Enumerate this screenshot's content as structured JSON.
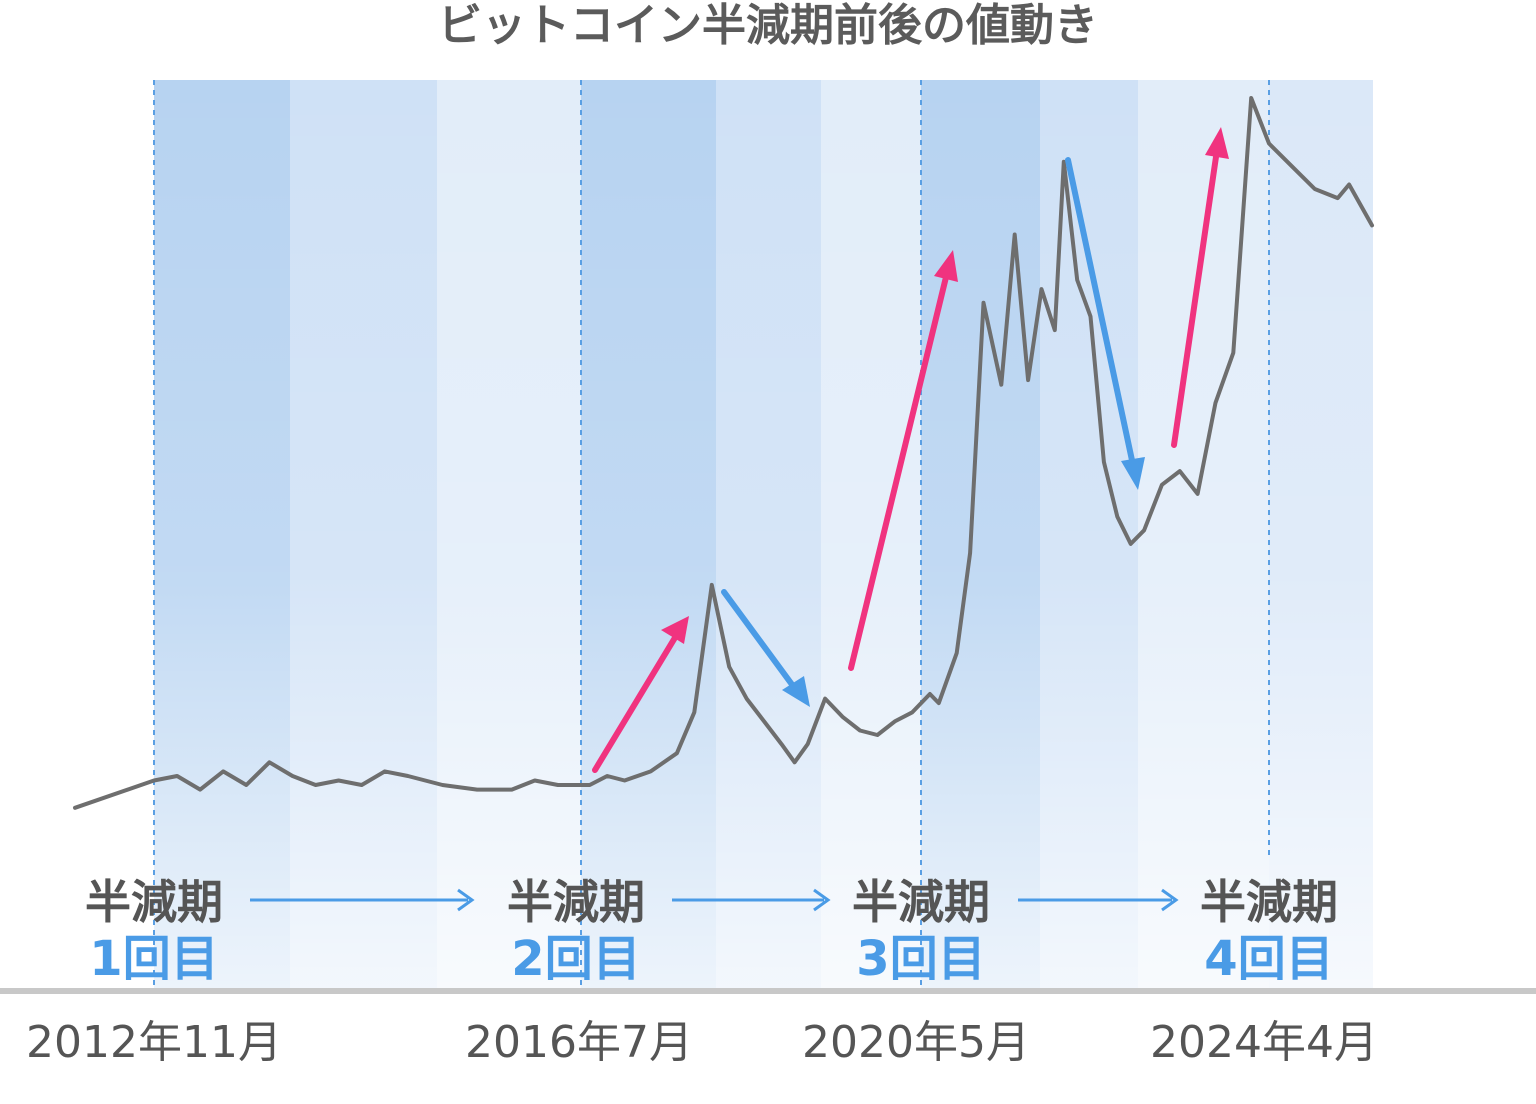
{
  "chart_data": {
    "type": "line",
    "title": "ビットコイン半減期前後の値動き",
    "xlabel": "",
    "ylabel": "",
    "grid": false,
    "x_tick_labels": [
      "2012年11月",
      "2016年7月",
      "2020年5月",
      "2024年4月"
    ],
    "halvings": [
      {
        "word": "半減期",
        "count": "1回目",
        "date": "2012年11月"
      },
      {
        "word": "半減期",
        "count": "2回目",
        "date": "2016年7月"
      },
      {
        "word": "半減期",
        "count": "3回目",
        "date": "2020年5月"
      },
      {
        "word": "半減期",
        "count": "4回目",
        "date": "2024年4月"
      }
    ],
    "series": [
      {
        "color": "#6e6e6e",
        "points": [
          [
            2011.8,
            4
          ],
          [
            2012.8,
            10
          ],
          [
            2013.0,
            11
          ],
          [
            2013.2,
            8
          ],
          [
            2013.4,
            12
          ],
          [
            2013.6,
            9
          ],
          [
            2013.8,
            14
          ],
          [
            2014.0,
            11
          ],
          [
            2014.2,
            9
          ],
          [
            2014.4,
            10
          ],
          [
            2014.6,
            9
          ],
          [
            2014.8,
            12
          ],
          [
            2015.0,
            11
          ],
          [
            2015.3,
            9
          ],
          [
            2015.6,
            8
          ],
          [
            2015.9,
            8
          ],
          [
            2016.1,
            10
          ],
          [
            2016.3,
            9
          ],
          [
            2016.6,
            9
          ],
          [
            2016.8,
            11
          ],
          [
            2017.0,
            10
          ],
          [
            2017.3,
            12
          ],
          [
            2017.6,
            16
          ],
          [
            2017.8,
            25
          ],
          [
            2018.0,
            53
          ],
          [
            2018.2,
            35
          ],
          [
            2018.4,
            28
          ],
          [
            2018.6,
            23
          ],
          [
            2018.8,
            18
          ],
          [
            2018.95,
            14
          ],
          [
            2019.1,
            18
          ],
          [
            2019.3,
            28
          ],
          [
            2019.5,
            24
          ],
          [
            2019.7,
            21
          ],
          [
            2019.9,
            20
          ],
          [
            2020.1,
            23
          ],
          [
            2020.3,
            25
          ],
          [
            2020.5,
            29
          ],
          [
            2020.6,
            27
          ],
          [
            2020.8,
            38
          ],
          [
            2020.95,
            60
          ],
          [
            2021.1,
            115
          ],
          [
            2021.3,
            97
          ],
          [
            2021.45,
            130
          ],
          [
            2021.6,
            98
          ],
          [
            2021.75,
            118
          ],
          [
            2021.9,
            109
          ],
          [
            2022.0,
            146
          ],
          [
            2022.15,
            120
          ],
          [
            2022.3,
            112
          ],
          [
            2022.45,
            80
          ],
          [
            2022.6,
            68
          ],
          [
            2022.75,
            62
          ],
          [
            2022.9,
            65
          ],
          [
            2023.1,
            75
          ],
          [
            2023.3,
            78
          ],
          [
            2023.5,
            73
          ],
          [
            2023.7,
            93
          ],
          [
            2023.9,
            104
          ],
          [
            2024.1,
            160
          ],
          [
            2024.3,
            150
          ],
          [
            2024.5,
            145
          ],
          [
            2024.7,
            140
          ],
          [
            2024.9,
            138
          ],
          [
            2025.0,
            141
          ],
          [
            2025.2,
            132
          ]
        ]
      }
    ]
  }
}
